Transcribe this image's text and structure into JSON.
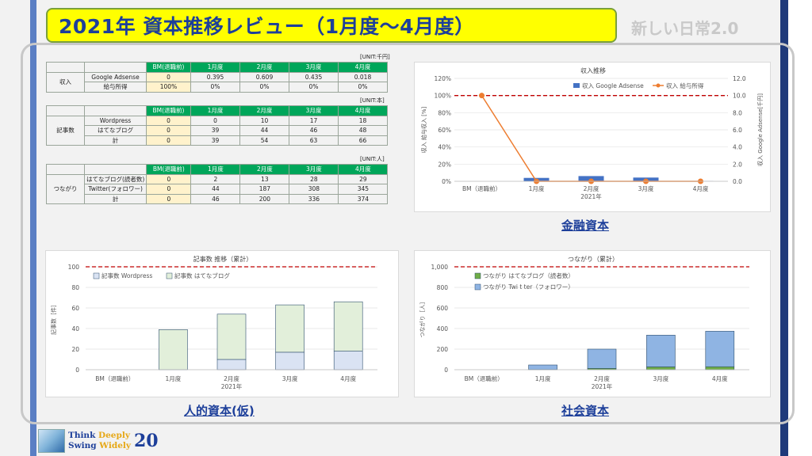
{
  "slide": {
    "title": "2021年 資本推移レビュー（1月度～4月度）",
    "tag": "新しい日常2.0",
    "colors": {
      "title_bg": "#ffff00",
      "title_text": "#1d3f9a",
      "header_green": "#00a65a",
      "bm_cell": "#fff2cc"
    }
  },
  "tables": [
    {
      "unit": "[UNIT:千円]",
      "headers": [
        "",
        "",
        "BM(退職前)",
        "1月度",
        "2月度",
        "3月度",
        "4月度"
      ],
      "group": "収入",
      "rows": [
        [
          "Google Adsense",
          "0",
          "0.395",
          "0.609",
          "0.435",
          "0.018"
        ],
        [
          "給与所得",
          "100%",
          "0%",
          "0%",
          "0%",
          "0%"
        ]
      ]
    },
    {
      "unit": "[UNIT:本]",
      "headers": [
        "",
        "",
        "BM(退職前)",
        "1月度",
        "2月度",
        "3月度",
        "4月度"
      ],
      "group": "記事数",
      "rows": [
        [
          "Wordpress",
          "0",
          "0",
          "10",
          "17",
          "18"
        ],
        [
          "はてなブログ",
          "0",
          "39",
          "44",
          "46",
          "48"
        ],
        [
          "計",
          "0",
          "39",
          "54",
          "63",
          "66"
        ]
      ]
    },
    {
      "unit": "[UNIT:人]",
      "headers": [
        "",
        "",
        "BM(退職前)",
        "1月度",
        "2月度",
        "3月度",
        "4月度"
      ],
      "group": "つながり",
      "rows": [
        [
          "はてなブログ(読者数)",
          "0",
          "2",
          "13",
          "28",
          "29"
        ],
        [
          "Twitter(フォロワー)",
          "0",
          "44",
          "187",
          "308",
          "345"
        ],
        [
          "計",
          "0",
          "46",
          "200",
          "336",
          "374"
        ]
      ]
    }
  ],
  "section_labels": {
    "finance": "金融資本",
    "human": "人的資本(仮)",
    "social": "社会資本"
  },
  "chart_data": [
    {
      "type": "bar+line",
      "title": "収入推移",
      "categories": [
        "BM（退職前）",
        "1月度",
        "2月度",
        "3月度",
        "4月度"
      ],
      "x_group_label": "2021年",
      "ylabel_left": "収入 給与収入 [%]",
      "ylabel_right": "収入 Google Adsense[千円]",
      "ylim_left": [
        0,
        120
      ],
      "ylim_right": [
        0,
        12
      ],
      "yticks_left": [
        "0%",
        "20%",
        "40%",
        "60%",
        "80%",
        "100%",
        "120%"
      ],
      "yticks_right": [
        "0.0",
        "2.0",
        "4.0",
        "6.0",
        "8.0",
        "10.0",
        "12.0"
      ],
      "reference_line": 100,
      "series": [
        {
          "name": "収入 Google Adsense",
          "kind": "bar",
          "axis": "right",
          "values": [
            0,
            0.395,
            0.609,
            0.435,
            0.018
          ],
          "color": "#4472c4"
        },
        {
          "name": "収入 給与所得",
          "kind": "line",
          "axis": "left",
          "values": [
            100,
            0,
            0,
            0,
            0
          ],
          "color": "#ed7d31"
        }
      ],
      "legend": "top-right"
    },
    {
      "type": "bar",
      "stacked": true,
      "title": "記事数 推移（累計）",
      "categories": [
        "BM（退職前）",
        "1月度",
        "2月度",
        "3月度",
        "4月度"
      ],
      "x_group_label": "2021年",
      "ylabel": "記事数［件］",
      "ylim": [
        0,
        100
      ],
      "yticks": [
        "0",
        "20",
        "40",
        "60",
        "80",
        "100"
      ],
      "reference_line": 100,
      "series": [
        {
          "name": "記事数 Wordpress",
          "values": [
            0,
            0,
            10,
            17,
            18
          ],
          "color": "#dae3f3"
        },
        {
          "name": "記事数 はてなブログ",
          "values": [
            0,
            39,
            44,
            46,
            48
          ],
          "color": "#e2efda"
        }
      ],
      "legend": "top-left"
    },
    {
      "type": "bar",
      "stacked": true,
      "title": "つながり（累計）",
      "categories": [
        "BM（退職前）",
        "1月度",
        "2月度",
        "3月度",
        "4月度"
      ],
      "x_group_label": "2021年",
      "ylabel": "つながり［人］",
      "ylim": [
        0,
        1000
      ],
      "yticks": [
        "0",
        "200",
        "400",
        "600",
        "800",
        "1,000"
      ],
      "reference_line": 1000,
      "series": [
        {
          "name": "つながり はてなブログ（読者数）",
          "values": [
            0,
            2,
            13,
            28,
            29
          ],
          "color": "#70ad47"
        },
        {
          "name": "つながり Twi t ter（フォロワー）",
          "values": [
            0,
            44,
            187,
            308,
            345
          ],
          "color": "#8fb4e3"
        }
      ],
      "legend": "top-left"
    }
  ],
  "logo": {
    "line1a": "Think ",
    "line1b": "Deeply",
    "line2a": "Swing ",
    "line2b": "Widely",
    "number": "20"
  }
}
